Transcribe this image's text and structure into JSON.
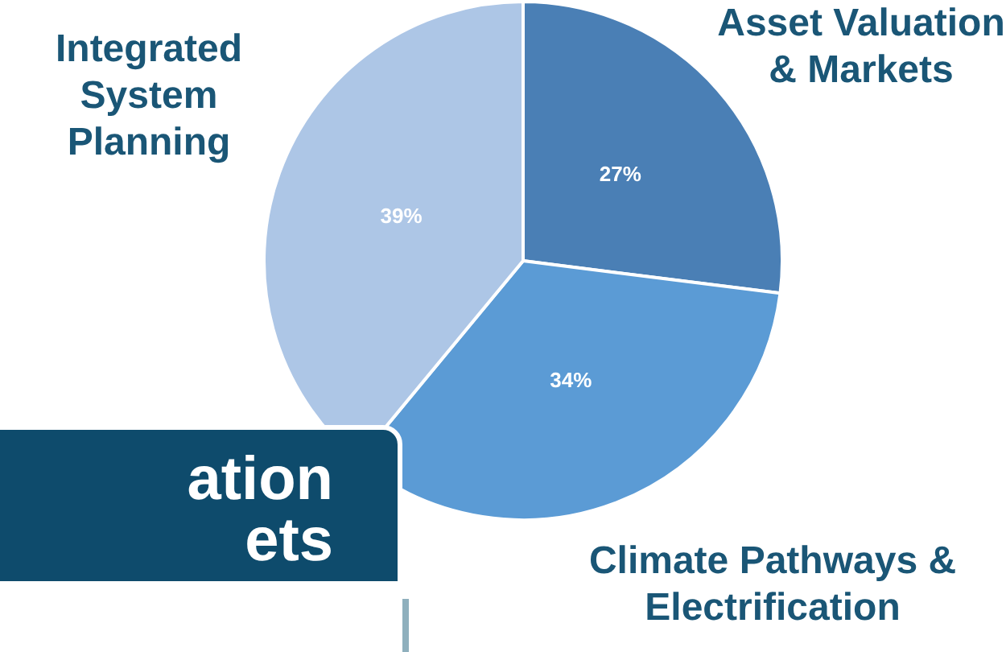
{
  "chart_data": {
    "type": "pie",
    "categories": [
      "Asset Valuation & Markets",
      "Climate Pathways & Electrification",
      "Integrated System Planning"
    ],
    "values": [
      27,
      34,
      39
    ],
    "colors": [
      "#4a7fb5",
      "#5b9bd5",
      "#adc6e6"
    ],
    "value_labels": [
      "27%",
      "34%",
      "39%"
    ],
    "legend": false,
    "annotations": [
      "ation\nets"
    ]
  }
}
